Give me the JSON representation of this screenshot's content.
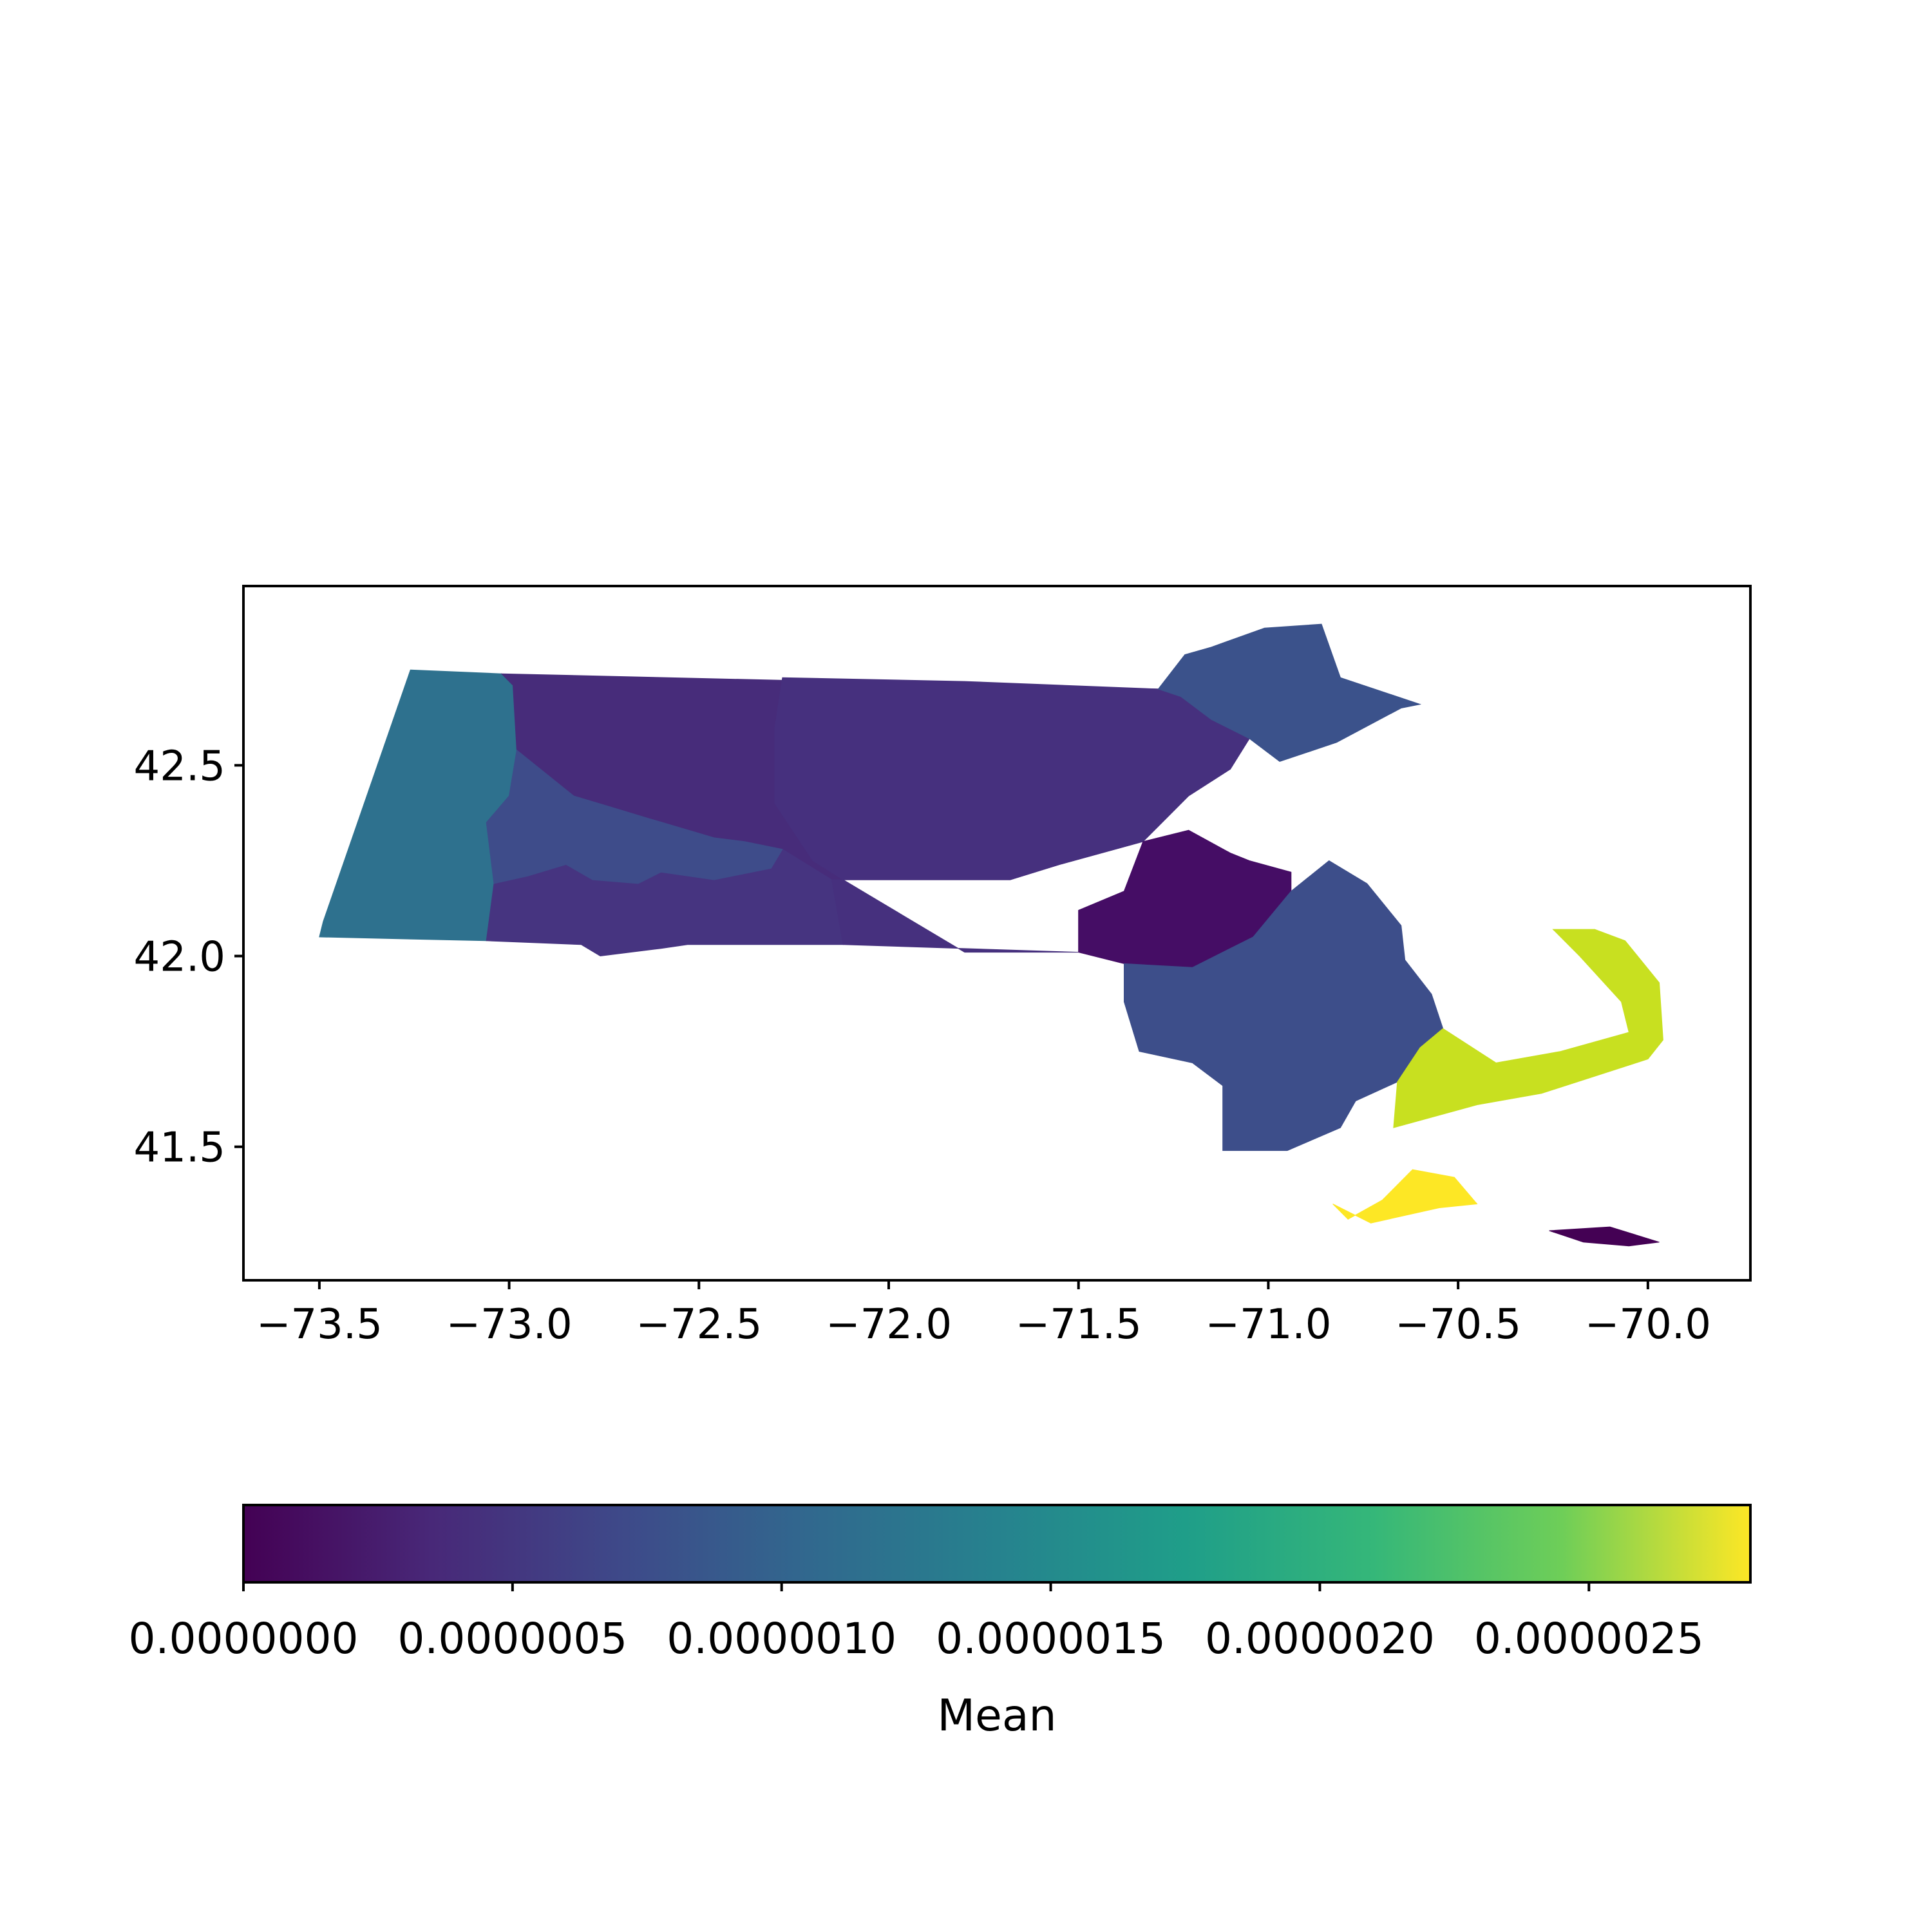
{
  "chart_data": {
    "type": "choropleth",
    "xlabel": "",
    "ylabel": "",
    "xlim": [
      -73.7,
      -69.73
    ],
    "ylim": [
      41.15,
      42.97
    ],
    "x_ticks": [
      -73.5,
      -73.0,
      -72.5,
      -72.0,
      -71.5,
      -71.0,
      -70.5,
      -70.0
    ],
    "x_tick_labels": [
      "−73.5",
      "−73.0",
      "−72.5",
      "−72.0",
      "−71.5",
      "−71.0",
      "−70.5",
      "−70.0"
    ],
    "y_ticks": [
      41.5,
      42.0,
      42.5
    ],
    "y_tick_labels": [
      "41.5",
      "42.0",
      "42.5"
    ],
    "colorbar": {
      "label": "Mean",
      "colormap": "viridis",
      "vmin": 0.0,
      "vmax": 2.8e-06,
      "ticks": [
        0.0,
        5e-07,
        1e-06,
        1.5e-06,
        2e-06,
        2.5e-06
      ],
      "tick_labels": [
        "0.0000000",
        "0.0000005",
        "0.0000010",
        "0.0000015",
        "0.0000020",
        "0.0000025"
      ]
    },
    "regions": [
      {
        "value": 9.2e-07,
        "color": "#2e718e",
        "points": [
          [
            -73.26,
            42.75
          ],
          [
            -73.02,
            42.74
          ],
          [
            -72.99,
            42.71
          ],
          [
            -72.97,
            42.65
          ],
          [
            -72.98,
            42.54
          ],
          [
            -73.0,
            42.42
          ],
          [
            -73.06,
            42.35
          ],
          [
            -73.04,
            42.19
          ],
          [
            -73.06,
            42.04
          ],
          [
            -73.5,
            42.05
          ],
          [
            -73.49,
            42.09
          ]
        ]
      },
      {
        "value": 3.3e-07,
        "color": "#472c7a",
        "points": [
          [
            -73.02,
            42.74
          ],
          [
            -71.29,
            42.7
          ],
          [
            -71.23,
            42.68
          ],
          [
            -71.15,
            42.62
          ],
          [
            -71.05,
            42.57
          ],
          [
            -71.1,
            42.49
          ],
          [
            -71.21,
            42.42
          ],
          [
            -71.33,
            42.3
          ],
          [
            -71.55,
            42.24
          ],
          [
            -71.68,
            42.2
          ],
          [
            -72.15,
            42.2
          ],
          [
            -72.22,
            42.22
          ],
          [
            -72.28,
            42.28
          ],
          [
            -72.38,
            42.3
          ],
          [
            -72.46,
            42.31
          ],
          [
            -72.63,
            42.36
          ],
          [
            -72.73,
            42.39
          ],
          [
            -72.83,
            42.42
          ],
          [
            -72.98,
            42.54
          ],
          [
            -72.99,
            42.71
          ]
        ]
      },
      {
        "value": 3.9e-07,
        "color": "#463480",
        "points": [
          [
            -72.28,
            42.28
          ],
          [
            -72.15,
            42.2
          ],
          [
            -72.12,
            42.03
          ],
          [
            -72.53,
            42.03
          ],
          [
            -72.6,
            42.02
          ],
          [
            -72.76,
            42.0
          ],
          [
            -72.81,
            42.03
          ],
          [
            -73.06,
            42.04
          ],
          [
            -73.04,
            42.19
          ],
          [
            -72.95,
            42.21
          ],
          [
            -72.85,
            42.24
          ],
          [
            -72.78,
            42.2
          ],
          [
            -72.66,
            42.19
          ],
          [
            -72.6,
            42.22
          ],
          [
            -72.46,
            42.2
          ]
        ]
      },
      {
        "value": 6e-07,
        "color": "#3e4c8a",
        "points": [
          [
            -73.06,
            42.35
          ],
          [
            -73.0,
            42.42
          ],
          [
            -72.98,
            42.54
          ],
          [
            -72.83,
            42.42
          ],
          [
            -72.73,
            42.39
          ],
          [
            -72.63,
            42.36
          ],
          [
            -72.46,
            42.31
          ],
          [
            -72.38,
            42.3
          ],
          [
            -72.28,
            42.28
          ],
          [
            -72.31,
            42.23
          ],
          [
            -72.46,
            42.2
          ],
          [
            -72.6,
            42.22
          ],
          [
            -72.66,
            42.19
          ],
          [
            -72.78,
            42.2
          ],
          [
            -72.85,
            42.24
          ],
          [
            -72.95,
            42.21
          ],
          [
            -73.04,
            42.19
          ]
        ]
      },
      {
        "value": 3.6e-07,
        "color": "#46307e",
        "points": [
          [
            -72.12,
            42.03
          ],
          [
            -72.15,
            42.2
          ],
          [
            -71.68,
            42.2
          ],
          [
            -71.55,
            42.24
          ],
          [
            -71.33,
            42.3
          ],
          [
            -71.21,
            42.42
          ],
          [
            -71.1,
            42.49
          ],
          [
            -71.05,
            42.57
          ],
          [
            -71.15,
            42.62
          ],
          [
            -71.23,
            42.68
          ],
          [
            -71.29,
            42.7
          ],
          [
            -71.8,
            42.72
          ],
          [
            -72.28,
            42.73
          ],
          [
            -72.3,
            42.6
          ],
          [
            -72.3,
            42.4
          ],
          [
            -72.2,
            42.25
          ],
          [
            -72.12,
            42.2
          ],
          [
            -71.8,
            42.01
          ],
          [
            -71.5,
            42.01
          ]
        ]
      },
      {
        "value": 5e-08,
        "color": "#450d65",
        "points": [
          [
            -71.5,
            42.01
          ],
          [
            -71.5,
            42.12
          ],
          [
            -71.38,
            42.17
          ],
          [
            -71.33,
            42.3
          ],
          [
            -71.21,
            42.33
          ],
          [
            -71.1,
            42.27
          ],
          [
            -71.05,
            42.25
          ],
          [
            -70.94,
            42.22
          ],
          [
            -70.94,
            42.17
          ],
          [
            -71.04,
            42.05
          ],
          [
            -71.2,
            41.97
          ],
          [
            -71.38,
            41.98
          ]
        ]
      },
      {
        "value": 6.2e-07,
        "color": "#3d4e8a",
        "points": [
          [
            -71.38,
            41.98
          ],
          [
            -71.2,
            41.97
          ],
          [
            -71.04,
            42.05
          ],
          [
            -70.94,
            42.17
          ],
          [
            -70.84,
            42.25
          ],
          [
            -70.74,
            42.19
          ],
          [
            -70.65,
            42.08
          ],
          [
            -70.64,
            41.99
          ],
          [
            -70.57,
            41.9
          ],
          [
            -70.54,
            41.81
          ],
          [
            -70.6,
            41.76
          ],
          [
            -70.66,
            41.67
          ],
          [
            -70.77,
            41.62
          ],
          [
            -70.81,
            41.55
          ],
          [
            -70.95,
            41.49
          ],
          [
            -71.12,
            41.49
          ],
          [
            -71.12,
            41.66
          ],
          [
            -71.2,
            41.72
          ],
          [
            -71.34,
            41.75
          ],
          [
            -71.38,
            41.88
          ]
        ]
      },
      {
        "value": 6.6e-07,
        "color": "#3b528b",
        "points": [
          [
            -71.29,
            42.7
          ],
          [
            -71.23,
            42.68
          ],
          [
            -71.15,
            42.62
          ],
          [
            -71.05,
            42.57
          ],
          [
            -70.97,
            42.51
          ],
          [
            -70.82,
            42.56
          ],
          [
            -70.65,
            42.65
          ],
          [
            -70.6,
            42.66
          ],
          [
            -70.81,
            42.73
          ],
          [
            -70.86,
            42.87
          ],
          [
            -71.01,
            42.86
          ],
          [
            -71.15,
            42.81
          ],
          [
            -71.22,
            42.79
          ]
        ]
      },
      {
        "value": 2.58e-06,
        "color": "#c8e020",
        "points": [
          [
            -70.54,
            41.81
          ],
          [
            -70.6,
            41.76
          ],
          [
            -70.66,
            41.67
          ],
          [
            -70.67,
            41.55
          ],
          [
            -70.45,
            41.61
          ],
          [
            -70.28,
            41.64
          ],
          [
            -70.0,
            41.73
          ],
          [
            -69.96,
            41.78
          ],
          [
            -69.97,
            41.93
          ],
          [
            -70.06,
            42.04
          ],
          [
            -70.14,
            42.07
          ],
          [
            -70.25,
            42.07
          ],
          [
            -70.18,
            42.0
          ],
          [
            -70.07,
            41.88
          ],
          [
            -70.05,
            41.8
          ],
          [
            -70.23,
            41.75
          ],
          [
            -70.4,
            41.72
          ]
        ]
      },
      {
        "value": 2.75e-06,
        "color": "#fde725",
        "points": [
          [
            -70.83,
            41.35
          ],
          [
            -70.79,
            41.31
          ],
          [
            -70.7,
            41.36
          ],
          [
            -70.62,
            41.44
          ],
          [
            -70.51,
            41.42
          ],
          [
            -70.45,
            41.35
          ],
          [
            -70.55,
            41.34
          ],
          [
            -70.73,
            41.3
          ]
        ]
      },
      {
        "value": 1e-08,
        "color": "#440154",
        "points": [
          [
            -70.26,
            41.28
          ],
          [
            -70.1,
            41.29
          ],
          [
            -69.97,
            41.25
          ],
          [
            -70.05,
            41.24
          ],
          [
            -70.17,
            41.25
          ],
          [
            -70.23,
            41.27
          ]
        ]
      }
    ]
  }
}
